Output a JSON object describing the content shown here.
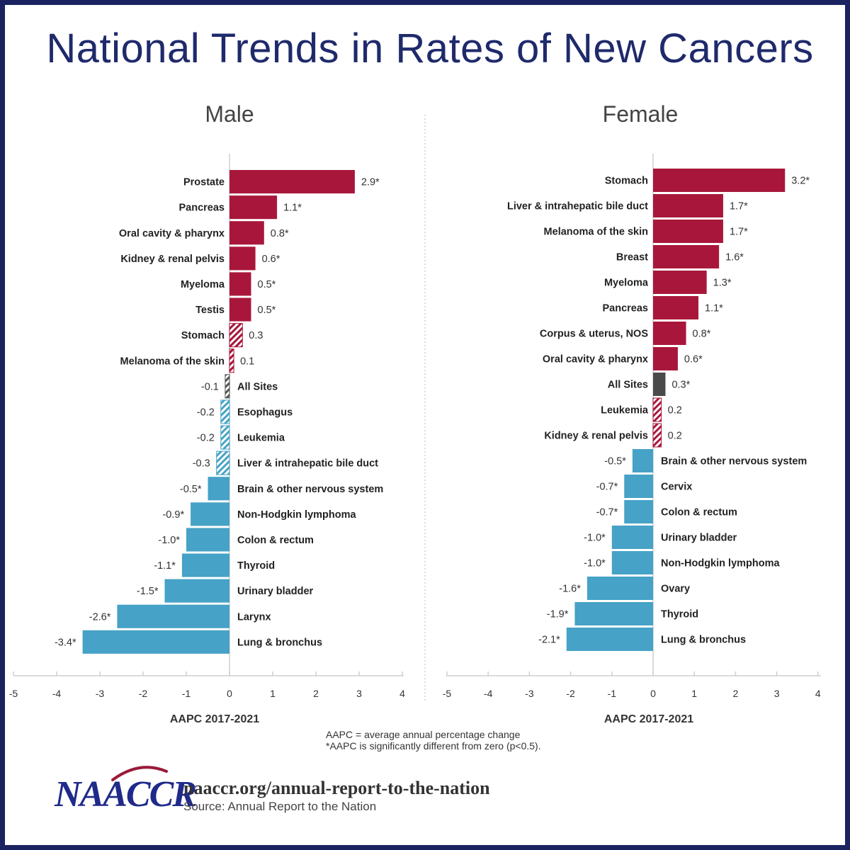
{
  "title": "National Trends in Rates of New Cancers",
  "colors": {
    "positive": "#a8173b",
    "negative": "#46a2c6",
    "all_sites_female": "#4a4a4a",
    "title": "#1f2a6b",
    "frame": "#1a2260"
  },
  "chart_data": [
    {
      "type": "bar",
      "orientation": "horizontal",
      "title": "Male",
      "xlabel": "AAPC 2017-2021",
      "xlim": [
        -5,
        4
      ],
      "xticks": [
        -5,
        -4,
        -3,
        -2,
        -1,
        0,
        1,
        2,
        3,
        4
      ],
      "categories": [
        "Prostate",
        "Pancreas",
        "Oral cavity & pharynx",
        "Kidney & renal pelvis",
        "Myeloma",
        "Testis",
        "Stomach",
        "Melanoma of the skin",
        "All Sites",
        "Esophagus",
        "Leukemia",
        "Liver & intrahepatic bile duct",
        "Brain & other nervous system",
        "Non-Hodgkin lymphoma",
        "Colon & rectum",
        "Thyroid",
        "Urinary bladder",
        "Larynx",
        "Lung & bronchus"
      ],
      "values": [
        2.9,
        1.1,
        0.8,
        0.6,
        0.5,
        0.5,
        0.3,
        0.1,
        -0.1,
        -0.2,
        -0.2,
        -0.3,
        -0.5,
        -0.9,
        -1.0,
        -1.1,
        -1.5,
        -2.6,
        -3.4
      ],
      "value_labels": [
        "2.9*",
        "1.1*",
        "0.8*",
        "0.6*",
        "0.5*",
        "0.5*",
        "0.3",
        "0.1",
        "-0.1",
        "-0.2",
        "-0.2",
        "-0.3",
        "-0.5*",
        "-0.9*",
        "-1.0*",
        "-1.1*",
        "-1.5*",
        "-2.6*",
        "-3.4*"
      ],
      "significant": [
        true,
        true,
        true,
        true,
        true,
        true,
        false,
        false,
        false,
        false,
        false,
        false,
        true,
        true,
        true,
        true,
        true,
        true,
        true
      ]
    },
    {
      "type": "bar",
      "orientation": "horizontal",
      "title": "Female",
      "xlabel": "AAPC 2017-2021",
      "xlim": [
        -5,
        4
      ],
      "xticks": [
        -5,
        -4,
        -3,
        -2,
        -1,
        0,
        1,
        2,
        3,
        4
      ],
      "categories": [
        "Stomach",
        "Liver & intrahepatic bile duct",
        "Melanoma of the skin",
        "Breast",
        "Myeloma",
        "Pancreas",
        "Corpus & uterus, NOS",
        "Oral cavity & pharynx",
        "All Sites",
        "Leukemia",
        "Kidney & renal pelvis",
        "Brain & other nervous system",
        "Cervix",
        "Colon & rectum",
        "Urinary bladder",
        "Non-Hodgkin lymphoma",
        "Ovary",
        "Thyroid",
        "Lung & bronchus"
      ],
      "values": [
        3.2,
        1.7,
        1.7,
        1.6,
        1.3,
        1.1,
        0.8,
        0.6,
        0.3,
        0.2,
        0.2,
        -0.5,
        -0.7,
        -0.7,
        -1.0,
        -1.0,
        -1.6,
        -1.9,
        -2.1
      ],
      "value_labels": [
        "3.2*",
        "1.7*",
        "1.7*",
        "1.6*",
        "1.3*",
        "1.1*",
        "0.8*",
        "0.6*",
        "0.3*",
        "0.2",
        "0.2",
        "-0.5*",
        "-0.7*",
        "-0.7*",
        "-1.0*",
        "-1.0*",
        "-1.6*",
        "-1.9*",
        "-2.1*"
      ],
      "significant": [
        true,
        true,
        true,
        true,
        true,
        true,
        true,
        true,
        true,
        false,
        false,
        true,
        true,
        true,
        true,
        true,
        true,
        true,
        true
      ]
    }
  ],
  "footnotes": {
    "line1": "AAPC = average annual percentage change",
    "line2": "*AAPC is significantly different from zero (p<0.5)."
  },
  "footer": {
    "logo_text": "NAACCR",
    "url": "naaccr.org/annual-report-to-the-nation",
    "source": "Source: Annual Report to the Nation"
  }
}
